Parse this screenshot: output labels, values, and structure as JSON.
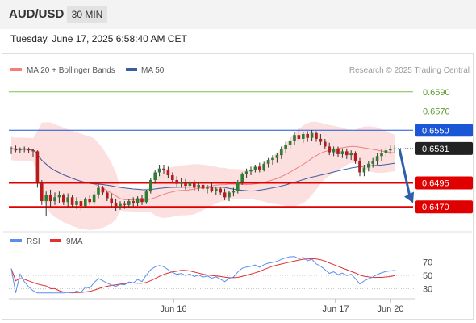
{
  "header": {
    "pair": "AUD/USD",
    "timeframe": "30 MIN"
  },
  "timestamp": "Tuesday, June 17, 2025 6:58:40 AM CET",
  "legend": {
    "ma20": "MA 20 + Bollinger Bands",
    "ma50": "MA 50",
    "copyright": "Research © 2025 Trading Central",
    "rsi": "RSI",
    "rsi_ma": "9MA"
  },
  "colors": {
    "ma20": "#f08080",
    "ma50": "#3a5fa0",
    "bollinger_fill": "#fbd4d4",
    "bull": "#2e7d32",
    "bear": "#b71c1c",
    "support": "#e00000",
    "resistance_blue": "#1a56d6",
    "target_green": "#7cc04a",
    "arrow": "#2d5fa8",
    "rsi_line": "#5b8def",
    "rsi_ma_line": "#e03030"
  },
  "chart_data": [
    {
      "type": "candlestick",
      "title": "AUD/USD",
      "timeframe": "30 MIN",
      "x_ticks": [
        "Jun 16",
        "Jun 17",
        "Jun 20"
      ],
      "ylim": [
        0.6455,
        0.6605
      ],
      "current_price": "0.6531",
      "levels": [
        {
          "value": 0.659,
          "label": "0.6590",
          "kind": "target"
        },
        {
          "value": 0.657,
          "label": "0.6570",
          "kind": "target"
        },
        {
          "value": 0.655,
          "label": "0.6550",
          "kind": "resistance"
        },
        {
          "value": 0.6495,
          "label": "0.6495",
          "kind": "support"
        },
        {
          "value": 0.647,
          "label": "0.6470",
          "kind": "support"
        }
      ],
      "forecast": {
        "from": 0.653,
        "to": 0.6474,
        "direction": "down"
      },
      "ohlc": [
        [
          0.653,
          0.6533,
          0.6525,
          0.6531
        ],
        [
          0.6531,
          0.6534,
          0.6527,
          0.6529
        ],
        [
          0.6529,
          0.6532,
          0.6526,
          0.6531
        ],
        [
          0.6531,
          0.6533,
          0.6527,
          0.653
        ],
        [
          0.653,
          0.6532,
          0.6526,
          0.6529
        ],
        [
          0.6529,
          0.653,
          0.6522,
          0.6528
        ],
        [
          0.6528,
          0.6529,
          0.649,
          0.6495
        ],
        [
          0.6495,
          0.6498,
          0.6472,
          0.6476
        ],
        [
          0.6476,
          0.6486,
          0.646,
          0.6482
        ],
        [
          0.6482,
          0.6488,
          0.647,
          0.6476
        ],
        [
          0.6476,
          0.6485,
          0.6472,
          0.648
        ],
        [
          0.648,
          0.6486,
          0.6474,
          0.6482
        ],
        [
          0.6482,
          0.6484,
          0.6472,
          0.6475
        ],
        [
          0.6475,
          0.6484,
          0.647,
          0.648
        ],
        [
          0.648,
          0.6482,
          0.647,
          0.6472
        ],
        [
          0.6472,
          0.648,
          0.6468,
          0.6476
        ],
        [
          0.6476,
          0.6478,
          0.6466,
          0.6471
        ],
        [
          0.6471,
          0.648,
          0.6469,
          0.6478
        ],
        [
          0.6478,
          0.6482,
          0.6472,
          0.6475
        ],
        [
          0.6475,
          0.6486,
          0.6472,
          0.6483
        ],
        [
          0.6483,
          0.6494,
          0.6479,
          0.649
        ],
        [
          0.649,
          0.6492,
          0.6482,
          0.6485
        ],
        [
          0.6485,
          0.6487,
          0.6476,
          0.6479
        ],
        [
          0.6479,
          0.6484,
          0.647,
          0.6474
        ],
        [
          0.6474,
          0.6478,
          0.6466,
          0.647
        ],
        [
          0.647,
          0.6476,
          0.6467,
          0.6473
        ],
        [
          0.6473,
          0.6476,
          0.6468,
          0.6472
        ],
        [
          0.6472,
          0.6478,
          0.6469,
          0.6476
        ],
        [
          0.6476,
          0.648,
          0.647,
          0.6474
        ],
        [
          0.6474,
          0.6481,
          0.6471,
          0.6479
        ],
        [
          0.6479,
          0.6482,
          0.6472,
          0.6475
        ],
        [
          0.6475,
          0.6488,
          0.6473,
          0.6486
        ],
        [
          0.6486,
          0.65,
          0.6484,
          0.6498
        ],
        [
          0.6498,
          0.6508,
          0.6494,
          0.6506
        ],
        [
          0.6506,
          0.6514,
          0.6502,
          0.651
        ],
        [
          0.651,
          0.6514,
          0.6504,
          0.6508
        ],
        [
          0.6508,
          0.6512,
          0.65,
          0.6503
        ],
        [
          0.6503,
          0.6506,
          0.6496,
          0.6498
        ],
        [
          0.6498,
          0.6502,
          0.6491,
          0.6494
        ],
        [
          0.6494,
          0.65,
          0.649,
          0.6496
        ],
        [
          0.6496,
          0.6499,
          0.6488,
          0.6492
        ],
        [
          0.6492,
          0.6498,
          0.6488,
          0.6495
        ],
        [
          0.6495,
          0.6498,
          0.6487,
          0.649
        ],
        [
          0.649,
          0.6496,
          0.6486,
          0.6493
        ],
        [
          0.6493,
          0.6496,
          0.6486,
          0.6489
        ],
        [
          0.6489,
          0.6493,
          0.6484,
          0.6491
        ],
        [
          0.6491,
          0.6495,
          0.6485,
          0.6487
        ],
        [
          0.6487,
          0.6491,
          0.6482,
          0.6489
        ],
        [
          0.6489,
          0.6491,
          0.6482,
          0.6485
        ],
        [
          0.6485,
          0.6489,
          0.6477,
          0.648
        ],
        [
          0.648,
          0.6487,
          0.6476,
          0.6485
        ],
        [
          0.6485,
          0.649,
          0.6481,
          0.6487
        ],
        [
          0.6487,
          0.6498,
          0.6484,
          0.6496
        ],
        [
          0.6496,
          0.6506,
          0.6493,
          0.6504
        ],
        [
          0.6504,
          0.651,
          0.65,
          0.6507
        ],
        [
          0.6507,
          0.6512,
          0.6503,
          0.6509
        ],
        [
          0.6509,
          0.6514,
          0.6506,
          0.6512
        ],
        [
          0.6512,
          0.6516,
          0.6506,
          0.6509
        ],
        [
          0.6509,
          0.6517,
          0.6507,
          0.6515
        ],
        [
          0.6515,
          0.6521,
          0.6511,
          0.6519
        ],
        [
          0.6519,
          0.6524,
          0.6514,
          0.6521
        ],
        [
          0.6521,
          0.6526,
          0.6516,
          0.6524
        ],
        [
          0.6524,
          0.6533,
          0.652,
          0.653
        ],
        [
          0.653,
          0.6538,
          0.6526,
          0.6535
        ],
        [
          0.6535,
          0.6542,
          0.653,
          0.6539
        ],
        [
          0.6539,
          0.6548,
          0.6535,
          0.6545
        ],
        [
          0.6545,
          0.6552,
          0.6538,
          0.6541
        ],
        [
          0.6541,
          0.6548,
          0.6537,
          0.6546
        ],
        [
          0.6546,
          0.6549,
          0.6538,
          0.6542
        ],
        [
          0.6542,
          0.655,
          0.6539,
          0.6547
        ],
        [
          0.6547,
          0.6549,
          0.6538,
          0.6541
        ],
        [
          0.6541,
          0.6546,
          0.6535,
          0.6538
        ],
        [
          0.6538,
          0.6541,
          0.653,
          0.6533
        ],
        [
          0.6533,
          0.6537,
          0.6524,
          0.6527
        ],
        [
          0.6527,
          0.6533,
          0.6523,
          0.653
        ],
        [
          0.653,
          0.6533,
          0.6522,
          0.6525
        ],
        [
          0.6525,
          0.6531,
          0.6521,
          0.6528
        ],
        [
          0.6528,
          0.6531,
          0.652,
          0.6524
        ],
        [
          0.6524,
          0.6529,
          0.6519,
          0.6526
        ],
        [
          0.6526,
          0.6528,
          0.6515,
          0.6518
        ],
        [
          0.6518,
          0.6521,
          0.6502,
          0.6506
        ],
        [
          0.6506,
          0.6514,
          0.6502,
          0.6511
        ],
        [
          0.6511,
          0.6518,
          0.6507,
          0.6515
        ],
        [
          0.6515,
          0.6521,
          0.6511,
          0.6518
        ],
        [
          0.6518,
          0.6526,
          0.6514,
          0.6523
        ],
        [
          0.6523,
          0.653,
          0.6518,
          0.6526
        ],
        [
          0.6526,
          0.6532,
          0.6522,
          0.6529
        ],
        [
          0.6529,
          0.6534,
          0.6525,
          0.653
        ],
        [
          0.653,
          0.6535,
          0.6526,
          0.6531
        ]
      ]
    },
    {
      "type": "line",
      "title": "RSI",
      "series_names": [
        "RSI",
        "9MA"
      ],
      "yticks": [
        30,
        50,
        70
      ],
      "ylim": [
        20,
        80
      ],
      "last_value": 59
    }
  ]
}
